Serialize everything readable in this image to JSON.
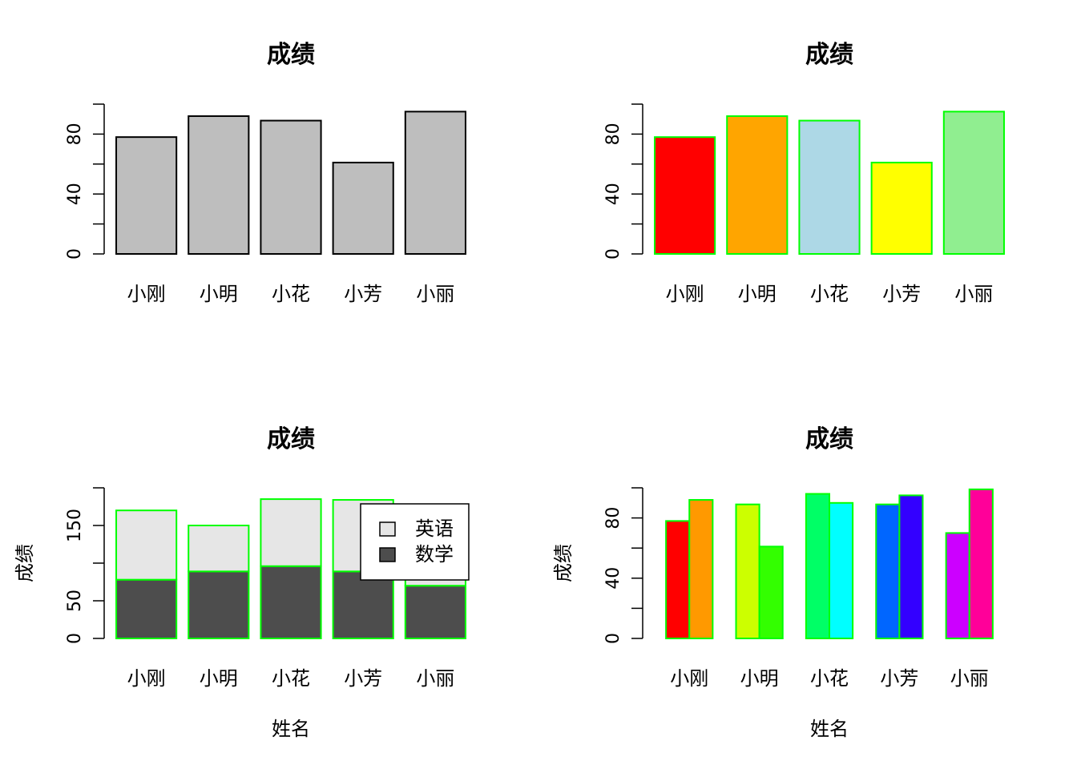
{
  "chart_data": [
    {
      "type": "bar",
      "title": "成绩",
      "xlabel": "",
      "ylabel": "",
      "categories": [
        "小刚",
        "小明",
        "小花",
        "小芳",
        "小丽"
      ],
      "values": [
        78,
        92,
        89,
        61,
        95
      ],
      "ylim": [
        0,
        100
      ],
      "yticks": [
        0,
        20,
        40,
        60,
        80,
        100
      ],
      "ytick_labels": [
        "0",
        "",
        "40",
        "",
        "80",
        ""
      ],
      "colors": [
        "#bebebe",
        "#bebebe",
        "#bebebe",
        "#bebebe",
        "#bebebe"
      ],
      "border_color": "#000000",
      "grid": false
    },
    {
      "type": "bar",
      "title": "成绩",
      "xlabel": "",
      "ylabel": "",
      "categories": [
        "小刚",
        "小明",
        "小花",
        "小芳",
        "小丽"
      ],
      "values": [
        78,
        92,
        89,
        61,
        95
      ],
      "ylim": [
        0,
        100
      ],
      "yticks": [
        0,
        20,
        40,
        60,
        80,
        100
      ],
      "ytick_labels": [
        "0",
        "",
        "40",
        "",
        "80",
        ""
      ],
      "colors": [
        "#ff0000",
        "#ffa500",
        "#add8e6",
        "#ffff00",
        "#90ee90"
      ],
      "border_color": "#00ff00",
      "grid": false
    },
    {
      "type": "bar",
      "stacked": true,
      "title": "成绩",
      "xlabel": "姓名",
      "ylabel": "成绩",
      "categories": [
        "小刚",
        "小明",
        "小花",
        "小芳",
        "小丽"
      ],
      "series": [
        {
          "name": "数学",
          "values": [
            78,
            89,
            96,
            89,
            70
          ],
          "color": "#4d4d4d"
        },
        {
          "name": "英语",
          "values": [
            92,
            61,
            89,
            95,
            100
          ],
          "color": "#e6e6e6"
        }
      ],
      "legend_order": [
        "英语",
        "数学"
      ],
      "ylim": [
        0,
        200
      ],
      "yticks": [
        0,
        50,
        100,
        150,
        200
      ],
      "ytick_labels": [
        "0",
        "50",
        "",
        "150",
        ""
      ],
      "border_color": "#00ff00",
      "legend": "top-right",
      "grid": false
    },
    {
      "type": "bar",
      "grouped": true,
      "title": "成绩",
      "xlabel": "姓名",
      "ylabel": "成绩",
      "categories": [
        "小刚",
        "小明",
        "小花",
        "小芳",
        "小丽"
      ],
      "series": [
        {
          "values": [
            78,
            89,
            96,
            89,
            70
          ]
        },
        {
          "values": [
            92,
            61,
            90,
            95,
            99
          ]
        }
      ],
      "bar_colors": [
        [
          "#ff0000",
          "#ff9900"
        ],
        [
          "#ccff00",
          "#33ff00"
        ],
        [
          "#00ff66",
          "#00ffff"
        ],
        [
          "#0066ff",
          "#3300ff"
        ],
        [
          "#cc00ff",
          "#ff0099"
        ]
      ],
      "ylim": [
        0,
        100
      ],
      "yticks": [
        0,
        20,
        40,
        60,
        80,
        100
      ],
      "ytick_labels": [
        "0",
        "",
        "40",
        "",
        "80",
        ""
      ],
      "border_color": "#00ff00",
      "grid": false
    }
  ]
}
